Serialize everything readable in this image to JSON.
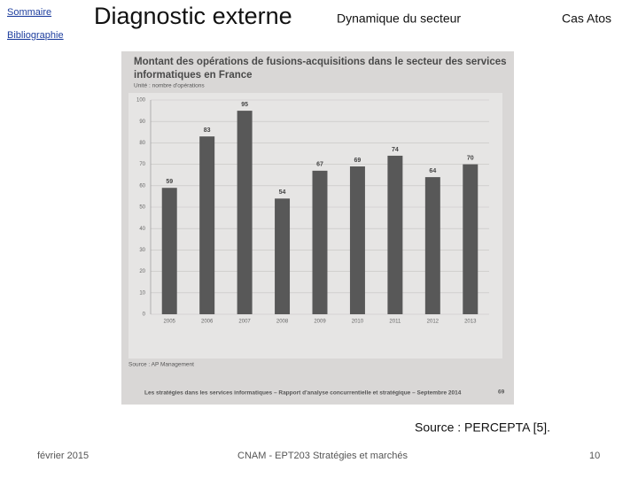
{
  "nav": [
    "Sommaire",
    "Bibliographie"
  ],
  "header": {
    "title": "Diagnostic externe",
    "section": "Dynamique du secteur",
    "case": "Cas Atos"
  },
  "chart_data": {
    "type": "bar",
    "title_lines": [
      "Montant des opérations de fusions-acquisitions dans le secteur des services",
      "informatiques en France"
    ],
    "subtitle": "Unité : nombre d'opérations",
    "categories": [
      "2005",
      "2006",
      "2007",
      "2008",
      "2009",
      "2010",
      "2011",
      "2012",
      "2013"
    ],
    "values": [
      59,
      83,
      95,
      54,
      67,
      69,
      74,
      64,
      70
    ],
    "color": "#585858",
    "ylim": [
      0,
      100
    ],
    "yticks": [
      0,
      10,
      20,
      30,
      40,
      50,
      60,
      70,
      80,
      90,
      100
    ],
    "grid": true,
    "source": "Source : AP Management",
    "footer": "Les stratégies dans les services informatiques – Rapport d'analyse concurrentielle et stratégique – Septembre 2014",
    "page": "69"
  },
  "caption": "Source : PERCEPTA [5].",
  "footer": {
    "date": "février 2015",
    "course": "CNAM - EPT203 Stratégies et marchés",
    "page": "10"
  }
}
